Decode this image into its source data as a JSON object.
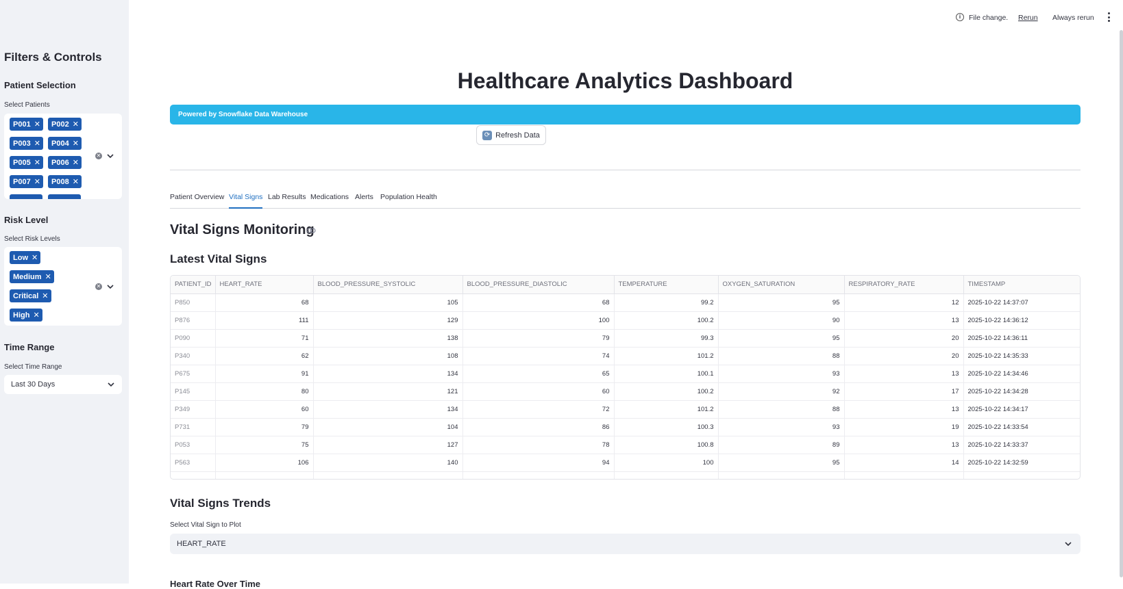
{
  "topbar": {
    "file_change": "File change.",
    "rerun": "Rerun",
    "always_rerun": "Always rerun"
  },
  "sidebar": {
    "title": "Filters & Controls",
    "patient_section": "Patient Selection",
    "patient_label": "Select Patients",
    "patients": [
      "P001",
      "P002",
      "P003",
      "P004",
      "P005",
      "P006",
      "P007",
      "P008"
    ],
    "risk_section": "Risk Level",
    "risk_label": "Select Risk Levels",
    "risks": [
      "Low",
      "Medium",
      "Critical",
      "High"
    ],
    "time_section": "Time Range",
    "time_label": "Select Time Range",
    "time_value": "Last 30 Days"
  },
  "main": {
    "title": "Healthcare Analytics Dashboard",
    "banner": "Powered by Snowflake Data Warehouse",
    "refresh_label": "Refresh Data",
    "tabs": [
      "Patient Overview",
      "Vital Signs",
      "Lab Results",
      "Medications",
      "Alerts",
      "Population Health"
    ],
    "active_tab": "Vital Signs",
    "section_title": "Vital Signs Monitoring",
    "latest_title": "Latest Vital Signs",
    "trends_title": "Vital Signs Trends",
    "plot_label": "Select Vital Sign to Plot",
    "plot_value": "HEART_RATE",
    "cut_text": "Heart Rate Over Time"
  },
  "table": {
    "columns": [
      "PATIENT_ID",
      "HEART_RATE",
      "BLOOD_PRESSURE_SYSTOLIC",
      "BLOOD_PRESSURE_DIASTOLIC",
      "TEMPERATURE",
      "OXYGEN_SATURATION",
      "RESPIRATORY_RATE",
      "TIMESTAMP"
    ],
    "rows": [
      [
        "P850",
        "68",
        "105",
        "68",
        "99.2",
        "95",
        "12",
        "2025-10-22 14:37:07"
      ],
      [
        "P876",
        "111",
        "129",
        "100",
        "100.2",
        "90",
        "13",
        "2025-10-22 14:36:12"
      ],
      [
        "P090",
        "71",
        "138",
        "79",
        "99.3",
        "95",
        "20",
        "2025-10-22 14:36:11"
      ],
      [
        "P340",
        "62",
        "108",
        "74",
        "101.2",
        "88",
        "20",
        "2025-10-22 14:35:33"
      ],
      [
        "P675",
        "91",
        "134",
        "65",
        "100.1",
        "93",
        "13",
        "2025-10-22 14:34:46"
      ],
      [
        "P145",
        "80",
        "121",
        "60",
        "100.2",
        "92",
        "17",
        "2025-10-22 14:34:28"
      ],
      [
        "P349",
        "60",
        "134",
        "72",
        "101.2",
        "88",
        "13",
        "2025-10-22 14:34:17"
      ],
      [
        "P731",
        "79",
        "104",
        "86",
        "100.3",
        "93",
        "19",
        "2025-10-22 14:33:54"
      ],
      [
        "P053",
        "75",
        "127",
        "78",
        "100.8",
        "89",
        "13",
        "2025-10-22 14:33:37"
      ],
      [
        "P563",
        "106",
        "140",
        "94",
        "100",
        "95",
        "14",
        "2025-10-22 14:32:59"
      ]
    ]
  },
  "colors": {
    "chip": "#1e5bb0",
    "banner": "#29b5e8",
    "accent": "#1f6fc0",
    "sidebar_bg": "#f0f2f6"
  }
}
